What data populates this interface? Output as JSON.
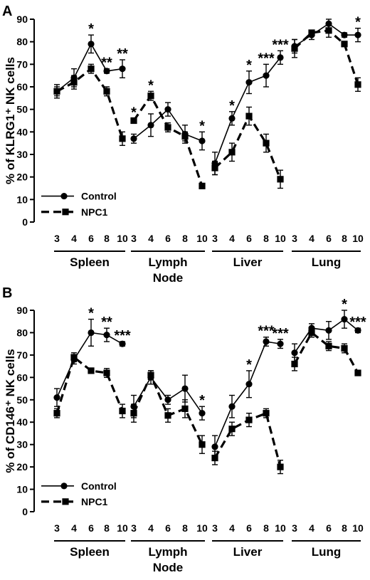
{
  "colors": {
    "ink": "#000000"
  },
  "chart_data": [
    {
      "type": "line",
      "panel_label": "A",
      "ylabel": "% of KLRG1⁺ NK cells",
      "ylim": [
        0,
        90
      ],
      "yticks": [
        0,
        10,
        20,
        30,
        40,
        50,
        60,
        70,
        80,
        90
      ],
      "yticklabels": [
        "0",
        "10",
        "20",
        "30",
        "40",
        "50",
        "60",
        "70",
        "80",
        "90"
      ],
      "grid": false,
      "legend_position": "bottom-left",
      "groups": [
        {
          "label_lines": [
            "Spleen"
          ],
          "x": [
            "3",
            "4",
            "6",
            "8",
            "10"
          ],
          "series": [
            {
              "name": "Control",
              "values": [
                58,
                64,
                79,
                67,
                68
              ],
              "errors": [
                3,
                4,
                4,
                1,
                4
              ]
            },
            {
              "name": "NPC1",
              "values": [
                58,
                62,
                68,
                58,
                37
              ],
              "errors": [
                2,
                3,
                2,
                2,
                3
              ]
            }
          ],
          "stars": [
            "",
            "",
            "*",
            "**",
            "**"
          ]
        },
        {
          "label_lines": [
            "Lymph",
            "Node"
          ],
          "x": [
            "3",
            "4",
            "6",
            "8",
            "10"
          ],
          "series": [
            {
              "name": "Control",
              "values": [
                37,
                43,
                50,
                39,
                36
              ],
              "errors": [
                2,
                5,
                3,
                4,
                4
              ]
            },
            {
              "name": "NPC1",
              "values": [
                45,
                56,
                42,
                38,
                16
              ],
              "errors": [
                1,
                2,
                2,
                2,
                1
              ]
            }
          ],
          "stars": [
            "*",
            "*",
            "",
            "",
            "*"
          ]
        },
        {
          "label_lines": [
            "Liver"
          ],
          "x": [
            "3",
            "4",
            "6",
            "8",
            "10"
          ],
          "series": [
            {
              "name": "Control",
              "values": [
                26,
                46,
                62,
                65,
                73
              ],
              "errors": [
                5,
                3,
                5,
                5,
                3
              ]
            },
            {
              "name": "NPC1",
              "values": [
                24,
                31,
                47,
                35,
                19
              ],
              "errors": [
                3,
                4,
                4,
                4,
                4
              ]
            }
          ],
          "stars": [
            "",
            "*",
            "*",
            "***",
            "***"
          ]
        },
        {
          "label_lines": [
            "Lung"
          ],
          "x": [
            "3",
            "4",
            "6",
            "8",
            "10"
          ],
          "series": [
            {
              "name": "Control",
              "values": [
                78,
                83,
                88,
                83,
                83
              ],
              "errors": [
                3,
                2,
                2,
                1,
                3
              ]
            },
            {
              "name": "NPC1",
              "values": [
                77,
                84,
                85,
                79,
                61
              ],
              "errors": [
                4,
                1,
                3,
                1,
                3
              ]
            }
          ],
          "stars": [
            "",
            "",
            "",
            "",
            "*"
          ]
        }
      ]
    },
    {
      "type": "line",
      "panel_label": "B",
      "ylabel": "% of CD146⁺ NK cells",
      "ylim": [
        0,
        90
      ],
      "yticks": [
        0,
        10,
        20,
        30,
        40,
        50,
        60,
        70,
        80,
        90
      ],
      "yticklabels": [
        "0",
        "10",
        "20",
        "30",
        "40",
        "50",
        "60",
        "70",
        "80",
        "90"
      ],
      "grid": false,
      "legend_position": "bottom-left",
      "groups": [
        {
          "label_lines": [
            "Spleen"
          ],
          "x": [
            "3",
            "4",
            "6",
            "8",
            "10"
          ],
          "series": [
            {
              "name": "Control",
              "values": [
                51,
                68,
                80,
                79,
                75
              ],
              "errors": [
                4,
                2,
                6,
                3,
                1
              ]
            },
            {
              "name": "NPC1",
              "values": [
                44,
                69,
                63,
                62,
                45
              ],
              "errors": [
                2,
                2,
                1,
                2,
                3
              ]
            }
          ],
          "stars": [
            "",
            "",
            "*",
            "**",
            "***"
          ]
        },
        {
          "label_lines": [
            "Lymph",
            "Node"
          ],
          "x": [
            "3",
            "4",
            "6",
            "8",
            "10"
          ],
          "series": [
            {
              "name": "Control",
              "values": [
                47,
                60,
                50,
                55,
                44
              ],
              "errors": [
                5,
                3,
                2,
                6,
                3
              ]
            },
            {
              "name": "NPC1",
              "values": [
                44,
                61,
                43,
                46,
                30
              ],
              "errors": [
                4,
                2,
                3,
                4,
                4
              ]
            }
          ],
          "stars": [
            "",
            "",
            "",
            "",
            "*"
          ]
        },
        {
          "label_lines": [
            "Liver"
          ],
          "x": [
            "3",
            "4",
            "6",
            "8",
            "10"
          ],
          "series": [
            {
              "name": "Control",
              "values": [
                29,
                47,
                57,
                76,
                75
              ],
              "errors": [
                5,
                5,
                6,
                2,
                2
              ]
            },
            {
              "name": "NPC1",
              "values": [
                24,
                37,
                41,
                44,
                20
              ],
              "errors": [
                3,
                3,
                3,
                2,
                3
              ]
            }
          ],
          "stars": [
            "",
            "",
            "*",
            "***",
            "***"
          ]
        },
        {
          "label_lines": [
            "Lung"
          ],
          "x": [
            "3",
            "4",
            "6",
            "8",
            "10"
          ],
          "series": [
            {
              "name": "Control",
              "values": [
                71,
                82,
                81,
                86,
                81
              ],
              "errors": [
                4,
                2,
                4,
                4,
                1
              ]
            },
            {
              "name": "NPC1",
              "values": [
                66,
                80,
                74,
                73,
                62
              ],
              "errors": [
                3,
                2,
                2,
                2,
                1
              ]
            }
          ],
          "stars": [
            "",
            "",
            "",
            "*",
            "***"
          ]
        }
      ]
    }
  ]
}
